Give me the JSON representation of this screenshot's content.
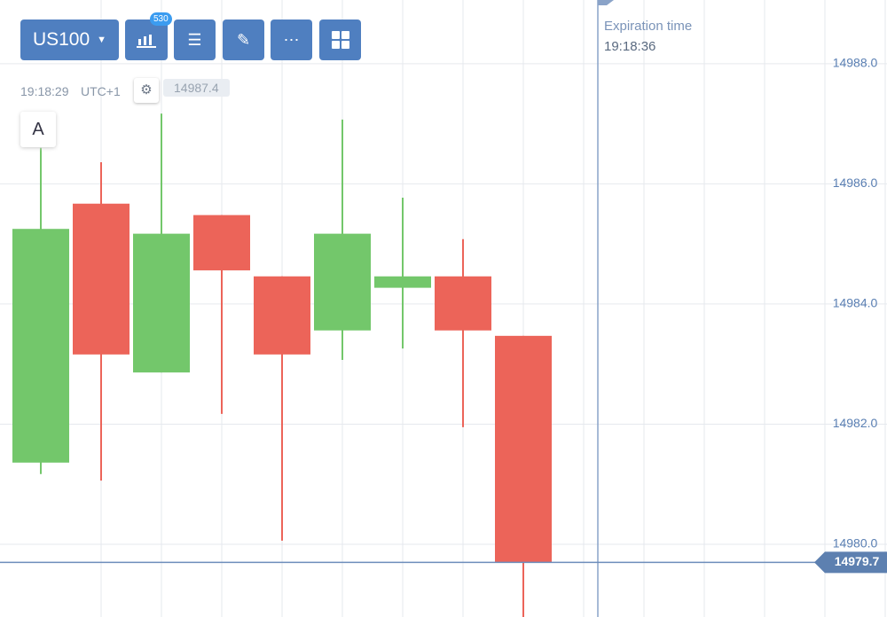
{
  "toolbar": {
    "symbol": "US100",
    "badge": "530"
  },
  "chart_data": {
    "type": "candlestick",
    "time": "19:18:29",
    "timezone": "UTC+1",
    "price_marker": "14987.4",
    "label": "A",
    "expiration_label": "Expiration time",
    "expiration_time": "19:18:36",
    "categories": [
      null,
      null,
      null,
      null,
      null,
      null,
      null,
      null,
      null
    ],
    "open": [
      14981.36,
      14985.67,
      14982.86,
      14985.48,
      14984.46,
      14983.56,
      14984.27,
      14984.46,
      14983.47
    ],
    "high": [
      14986.6,
      14986.36,
      14987.17,
      14985.48,
      14984.46,
      14987.07,
      14985.77,
      14985.08,
      14983.47
    ],
    "low": [
      14981.17,
      14981.06,
      14982.86,
      14982.17,
      14980.06,
      14983.07,
      14983.26,
      14981.95,
      14978.5
    ],
    "close": [
      14985.25,
      14983.16,
      14985.17,
      14984.56,
      14983.16,
      14985.17,
      14984.46,
      14983.56,
      14979.7
    ],
    "up_color": "#73c76b",
    "down_color": "#ec6459",
    "current_price": 14979.7,
    "ylim": [
      14978.79,
      14989.06
    ],
    "yticks": [
      {
        "value": 14980,
        "label": "14980.0"
      },
      {
        "value": 14982,
        "label": "14982.0"
      },
      {
        "value": 14984,
        "label": "14984.0"
      },
      {
        "value": 14986,
        "label": "14986.0"
      },
      {
        "value": 14988,
        "label": "14988.0"
      }
    ],
    "grid": true
  }
}
